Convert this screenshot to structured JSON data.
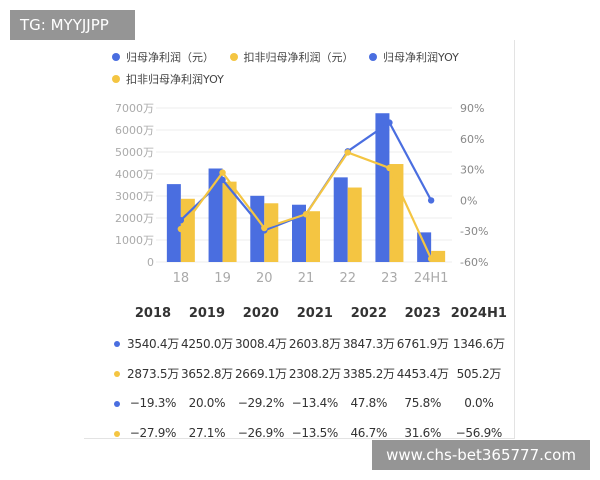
{
  "watermark_top": "TG: MYYJJPP",
  "watermark_bottom": "www.chs-bet365777.com",
  "colors": {
    "blue": "#4a6ee0",
    "yellow": "#f4c542",
    "grid": "#ececec",
    "axis_text": "#aaaaaa"
  },
  "chart_data": {
    "type": "bar",
    "categories": [
      "18",
      "19",
      "20",
      "21",
      "22",
      "23",
      "24H1"
    ],
    "series": [
      {
        "name": "归母净利润（元）",
        "kind": "bar",
        "axis": "left",
        "color": "#4a6ee0",
        "values": [
          3540.4,
          4250.0,
          3008.4,
          2603.8,
          3847.3,
          6761.9,
          1346.6
        ]
      },
      {
        "name": "扣非归母净利润（元）",
        "kind": "bar",
        "axis": "left",
        "color": "#f4c542",
        "values": [
          2873.5,
          3652.8,
          2669.1,
          2308.2,
          3385.2,
          4453.4,
          505.2
        ]
      },
      {
        "name": "归母净利润YOY",
        "kind": "line",
        "axis": "right",
        "color": "#4a6ee0",
        "values": [
          -19.3,
          20.0,
          -29.2,
          -13.4,
          47.8,
          75.8,
          0.0
        ]
      },
      {
        "name": "扣非归母净利润YOY",
        "kind": "line",
        "axis": "right",
        "color": "#f4c542",
        "values": [
          -27.9,
          27.1,
          -26.9,
          -13.5,
          46.7,
          31.6,
          -56.9
        ]
      }
    ],
    "left_axis": {
      "ticks": [
        "0",
        "1000万",
        "2000万",
        "3000万",
        "4000万",
        "5000万",
        "6000万",
        "7000万"
      ],
      "ylim": [
        0,
        7000
      ]
    },
    "right_axis": {
      "ticks": [
        "90%",
        "60%",
        "30%",
        "0%",
        "-30%",
        "-60%"
      ],
      "ylim": [
        -60,
        90
      ]
    },
    "legend_position": "top",
    "grid": true
  },
  "table": {
    "headers": [
      "2018",
      "2019",
      "2020",
      "2021",
      "2022",
      "2023",
      "2024H1"
    ],
    "rows": [
      {
        "color": "#4a6ee0",
        "cells": [
          "3540.4万",
          "4250.0万",
          "3008.4万",
          "2603.8万",
          "3847.3万",
          "6761.9万",
          "1346.6万"
        ]
      },
      {
        "color": "#f4c542",
        "cells": [
          "2873.5万",
          "3652.8万",
          "2669.1万",
          "2308.2万",
          "3385.2万",
          "4453.4万",
          "505.2万"
        ]
      },
      {
        "color": "#4a6ee0",
        "cells": [
          "−19.3%",
          "20.0%",
          "−29.2%",
          "−13.4%",
          "47.8%",
          "75.8%",
          "0.0%"
        ]
      },
      {
        "color": "#f4c542",
        "cells": [
          "−27.9%",
          "27.1%",
          "−26.9%",
          "−13.5%",
          "46.7%",
          "31.6%",
          "−56.9%"
        ]
      }
    ]
  }
}
